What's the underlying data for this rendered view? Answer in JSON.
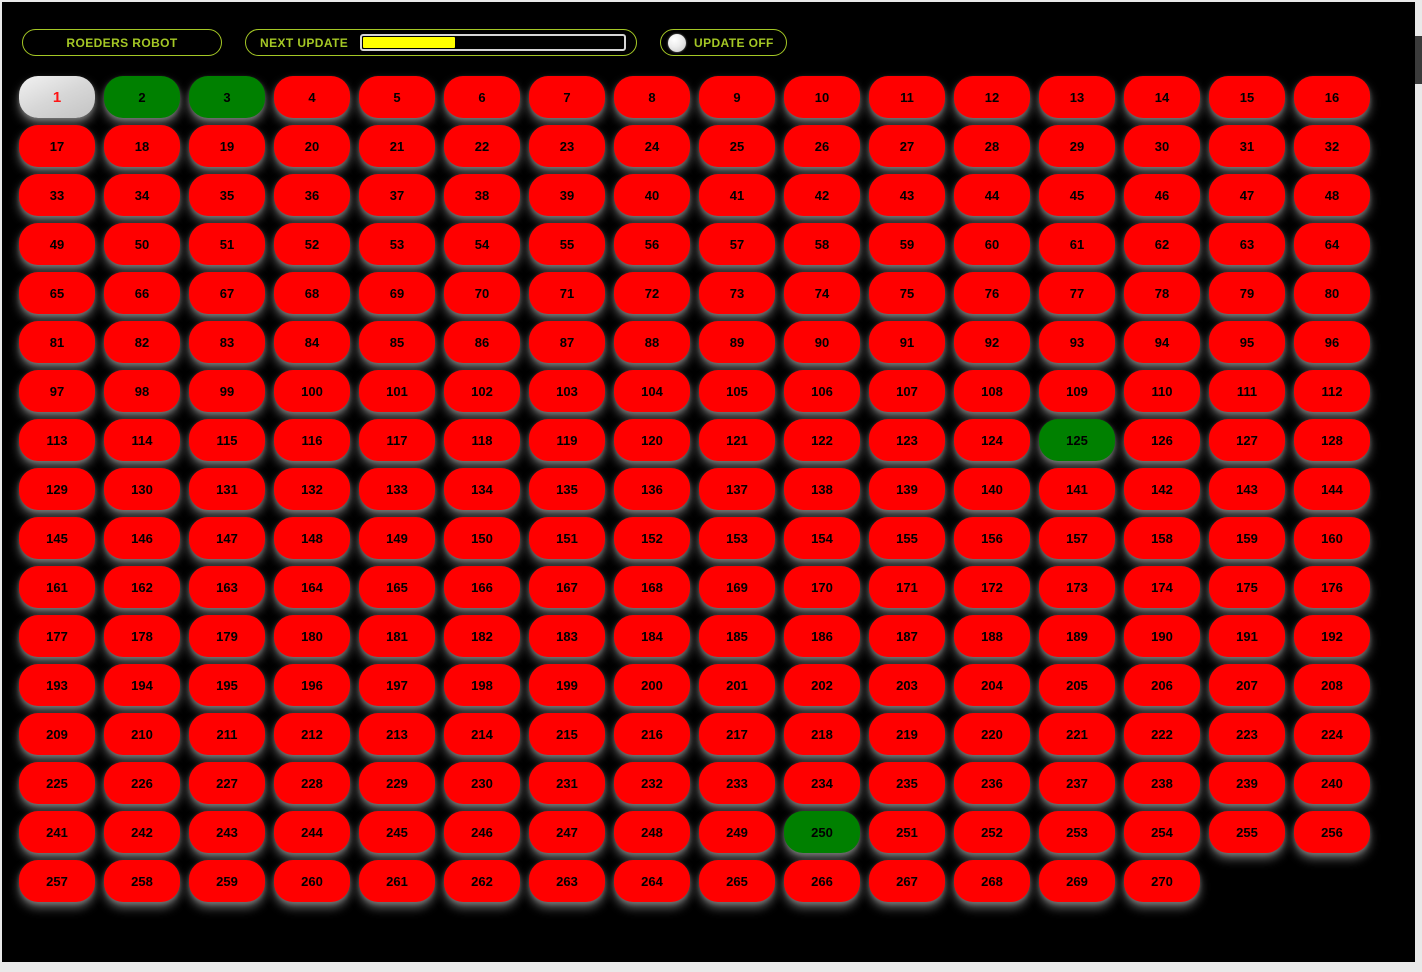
{
  "header": {
    "brand_label": "ROEDERS ROBOT",
    "next_update_label": "NEXT UPDATE",
    "progress_percent": 35,
    "update_toggle_label": "UPDATE OFF",
    "led_icon": "led-circle"
  },
  "colors": {
    "background": "#000000",
    "accent": "#a4c725",
    "progress_fill": "#ffff00",
    "button_red": "#ff0000",
    "button_green": "#008000",
    "button_gray": "#d3d3d3",
    "number_on_red": "#000000",
    "number_on_gray": "#ff1414",
    "frame": "#e9e9e9"
  },
  "grid": {
    "columns": 16,
    "button_count": 270,
    "first_number": 1,
    "last_number": 270,
    "green_buttons": [
      2,
      3,
      125,
      250
    ],
    "gray_buttons": [
      1
    ]
  }
}
